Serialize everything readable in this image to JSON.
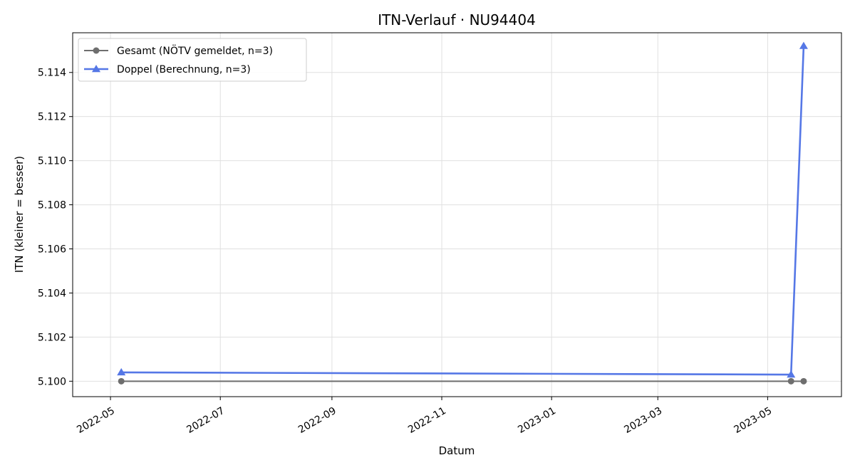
{
  "chart_data": {
    "type": "line",
    "title": "ITN-Verlauf · NU94404",
    "xlabel": "Datum",
    "ylabel": "ITN  (kleiner = besser)",
    "x_type": "date",
    "xlim": [
      "2022-04-10",
      "2023-06-11"
    ],
    "ylim": [
      5.0993,
      5.1158
    ],
    "x_ticks": [
      "2022-05-01",
      "2022-07-01",
      "2022-09-01",
      "2022-11-01",
      "2023-01-01",
      "2023-03-01",
      "2023-05-01"
    ],
    "x_tick_labels": [
      "2022-05",
      "2022-07",
      "2022-09",
      "2022-11",
      "2023-01",
      "2023-03",
      "2023-05"
    ],
    "y_ticks": [
      5.1,
      5.102,
      5.104,
      5.106,
      5.108,
      5.11,
      5.112,
      5.114
    ],
    "y_tick_labels": [
      "5.100",
      "5.102",
      "5.104",
      "5.106",
      "5.108",
      "5.110",
      "5.112",
      "5.114"
    ],
    "grid": true,
    "legend_position": "top-left",
    "series": [
      {
        "name": "Gesamt (NÖTV gemeldet, n=3)",
        "color": "#6e6e6e",
        "marker": "circle",
        "x": [
          "2022-05-07",
          "2023-05-14",
          "2023-05-21"
        ],
        "y": [
          5.1,
          5.1,
          5.1
        ]
      },
      {
        "name": "Doppel (Berechnung, n=3)",
        "color": "#5577e6",
        "marker": "triangle",
        "x": [
          "2022-05-07",
          "2023-05-14",
          "2023-05-21"
        ],
        "y": [
          5.1004,
          5.1003,
          5.1152
        ]
      }
    ]
  }
}
